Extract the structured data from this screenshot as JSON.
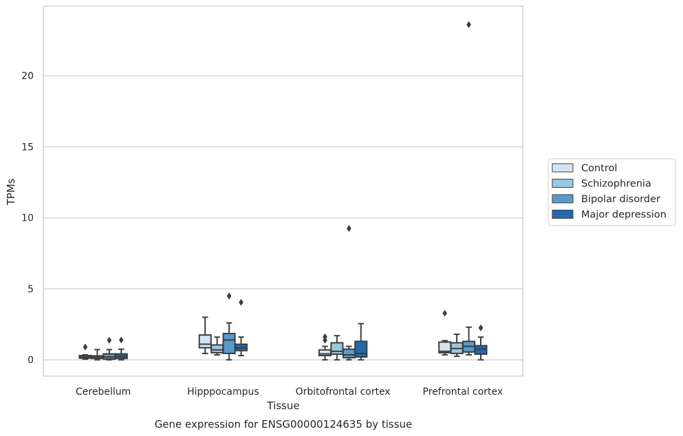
{
  "chart_data": {
    "type": "box",
    "title": "Gene expression for ENSG00000124635 by tissue",
    "xlabel": "Tissue",
    "ylabel": "TPMs",
    "categories": [
      "Cerebellum",
      "Hipppocampus",
      "Orbitofrontal cortex",
      "Prefrontal cortex"
    ],
    "ylim": [
      -1.15,
      24.9
    ],
    "yticks": [
      "0",
      "5",
      "10",
      "15",
      "20"
    ],
    "grid": "horizontal",
    "legend_position": "right",
    "series": [
      {
        "name": "Control",
        "color": "#d3e4f3",
        "boxes": [
          {
            "min": 0.05,
            "q1": 0.12,
            "median": 0.2,
            "q3": 0.3,
            "max": 0.35,
            "outliers": [
              0.9
            ]
          },
          {
            "min": 0.45,
            "q1": 0.85,
            "median": 1.1,
            "q3": 1.75,
            "max": 3.0,
            "outliers": []
          },
          {
            "min": 0.0,
            "q1": 0.3,
            "median": 0.42,
            "q3": 0.7,
            "max": 0.95,
            "outliers": [
              1.38,
              1.62
            ]
          },
          {
            "min": 0.35,
            "q1": 0.5,
            "median": 0.6,
            "q3": 1.25,
            "max": 1.35,
            "outliers": [
              3.28
            ]
          }
        ]
      },
      {
        "name": "Schizophrenia",
        "color": "#9ac8e0",
        "boxes": [
          {
            "min": 0.0,
            "q1": 0.1,
            "median": 0.2,
            "q3": 0.28,
            "max": 0.72,
            "outliers": []
          },
          {
            "min": 0.35,
            "q1": 0.5,
            "median": 0.7,
            "q3": 1.05,
            "max": 1.6,
            "outliers": []
          },
          {
            "min": 0.0,
            "q1": 0.4,
            "median": 0.6,
            "q3": 1.2,
            "max": 1.7,
            "outliers": []
          },
          {
            "min": 0.25,
            "q1": 0.45,
            "median": 0.8,
            "q3": 1.2,
            "max": 1.8,
            "outliers": []
          }
        ]
      },
      {
        "name": "Bipolar disorder",
        "color": "#5a9ac8",
        "boxes": [
          {
            "min": 0.0,
            "q1": 0.05,
            "median": 0.2,
            "q3": 0.42,
            "max": 0.72,
            "outliers": [
              1.38
            ]
          },
          {
            "min": 0.0,
            "q1": 0.45,
            "median": 1.4,
            "q3": 1.85,
            "max": 2.6,
            "outliers": [
              4.5
            ]
          },
          {
            "min": 0.0,
            "q1": 0.15,
            "median": 0.35,
            "q3": 0.75,
            "max": 0.95,
            "outliers": [
              9.25
            ]
          },
          {
            "min": 0.35,
            "q1": 0.55,
            "median": 0.95,
            "q3": 1.3,
            "max": 2.3,
            "outliers": [
              23.6
            ]
          }
        ]
      },
      {
        "name": "Major depression",
        "color": "#2369ad",
        "boxes": [
          {
            "min": 0.0,
            "q1": 0.1,
            "median": 0.25,
            "q3": 0.42,
            "max": 0.75,
            "outliers": [
              1.4
            ]
          },
          {
            "min": 0.3,
            "q1": 0.65,
            "median": 0.85,
            "q3": 1.1,
            "max": 1.6,
            "outliers": [
              4.05
            ]
          },
          {
            "min": 0.0,
            "q1": 0.2,
            "median": 0.45,
            "q3": 1.3,
            "max": 2.55,
            "outliers": []
          },
          {
            "min": 0.0,
            "q1": 0.4,
            "median": 0.75,
            "q3": 1.0,
            "max": 1.6,
            "outliers": [
              2.25
            ]
          }
        ]
      }
    ]
  }
}
